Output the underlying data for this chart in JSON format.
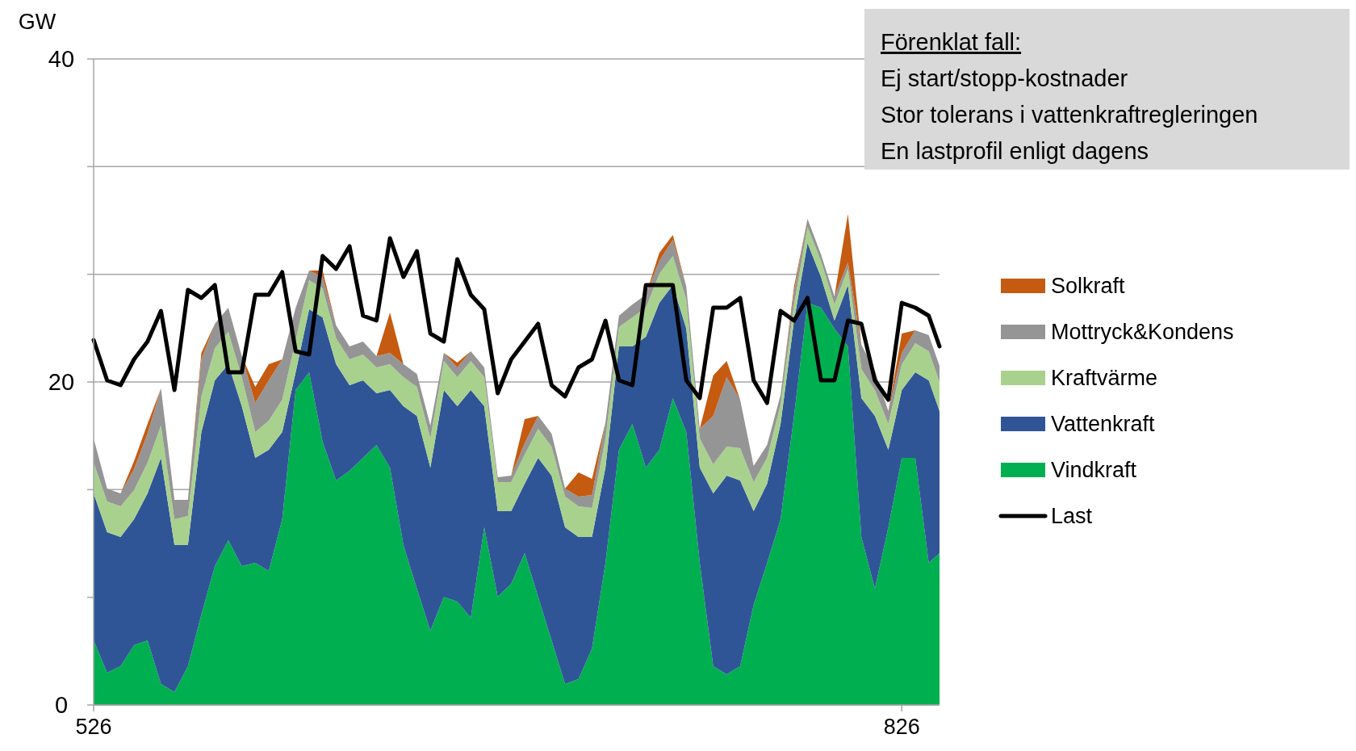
{
  "chart_data": {
    "type": "area",
    "stacked": true,
    "ylabel": "GW",
    "x": [
      526,
      531,
      536,
      541,
      546,
      551,
      556,
      561,
      566,
      571,
      576,
      581,
      586,
      591,
      596,
      601,
      606,
      611,
      616,
      621,
      626,
      631,
      636,
      641,
      646,
      651,
      656,
      661,
      666,
      671,
      676,
      681,
      686,
      691,
      696,
      701,
      706,
      711,
      716,
      721,
      726,
      731,
      736,
      741,
      746,
      751,
      756,
      761,
      766,
      771,
      776,
      781,
      786,
      791,
      796,
      801,
      806,
      811,
      816,
      821,
      826,
      831,
      836,
      840
    ],
    "series": [
      {
        "name": "Vindkraft",
        "color": "#00b050",
        "values": [
          4.0,
          2.0,
          2.4,
          3.7,
          4.0,
          1.3,
          0.8,
          2.4,
          5.6,
          8.6,
          10.2,
          8.6,
          8.8,
          8.3,
          11.5,
          19.5,
          20.6,
          16.3,
          13.9,
          14.5,
          15.3,
          16.1,
          14.7,
          9.9,
          7.2,
          4.6,
          6.7,
          6.4,
          5.4,
          11.0,
          6.7,
          7.5,
          9.4,
          6.7,
          4.0,
          1.3,
          1.6,
          3.5,
          8.8,
          15.8,
          17.4,
          14.7,
          15.8,
          19.0,
          16.9,
          8.8,
          2.4,
          1.9,
          2.4,
          6.2,
          8.8,
          11.5,
          17.9,
          24.9,
          24.6,
          23.3,
          22.2,
          10.4,
          7.2,
          11.0,
          15.3,
          15.3,
          8.8,
          9.4
        ]
      },
      {
        "name": "Vattenkraft",
        "color": "#2f5597",
        "values": [
          9.1,
          8.7,
          8.0,
          7.8,
          9.1,
          14.0,
          9.1,
          7.5,
          11.3,
          11.5,
          10.9,
          9.9,
          6.5,
          7.5,
          5.4,
          1.1,
          3.9,
          7.7,
          7.2,
          5.3,
          4.8,
          3.2,
          4.8,
          8.6,
          10.7,
          10.1,
          12.8,
          12.1,
          14.1,
          7.5,
          5.3,
          4.5,
          4.3,
          8.6,
          10.2,
          9.7,
          8.8,
          6.9,
          5.9,
          6.4,
          4.8,
          8.1,
          9.1,
          7.0,
          6.4,
          5.9,
          10.7,
          12.3,
          11.5,
          5.8,
          4.9,
          5.9,
          5.9,
          3.7,
          1.9,
          0.5,
          3.8,
          8.6,
          10.7,
          4.8,
          4.2,
          5.3,
          11.3,
          8.8
        ]
      },
      {
        "name": "Kraftvärme",
        "color": "#a9d18e",
        "values": [
          1.9,
          1.9,
          1.9,
          1.8,
          1.9,
          2.0,
          1.6,
          1.8,
          2.2,
          2.0,
          2.0,
          1.8,
          1.6,
          1.8,
          2.0,
          2.0,
          1.8,
          1.8,
          1.6,
          1.6,
          1.6,
          1.6,
          1.6,
          1.8,
          1.8,
          1.8,
          1.8,
          1.8,
          1.8,
          1.8,
          1.8,
          1.8,
          1.8,
          1.8,
          1.8,
          1.9,
          1.9,
          1.8,
          1.8,
          1.2,
          1.8,
          1.8,
          1.8,
          1.8,
          1.8,
          1.8,
          1.8,
          1.8,
          2.0,
          1.8,
          1.6,
          1.2,
          1.0,
          1.0,
          1.0,
          1.0,
          1.0,
          1.8,
          1.6,
          1.6,
          1.6,
          1.8,
          1.8,
          1.8
        ]
      },
      {
        "name": "Mottryck&Kondens",
        "color": "#959595",
        "values": [
          1.5,
          0.8,
          0.8,
          1.3,
          1.8,
          2.3,
          1.2,
          1.0,
          2.3,
          1.5,
          1.5,
          1.3,
          1.8,
          2.5,
          2.5,
          2.0,
          0.6,
          0.7,
          0.8,
          0.8,
          0.8,
          0.7,
          0.7,
          0.8,
          0.8,
          0.8,
          0.5,
          0.6,
          0.6,
          0.6,
          0.3,
          0.4,
          0.7,
          0.8,
          0.8,
          0.5,
          0.6,
          0.8,
          1.0,
          0.7,
          0.8,
          0.8,
          0.8,
          1.0,
          0.8,
          0.6,
          3.0,
          4.3,
          3.0,
          1.0,
          0.8,
          0.6,
          0.8,
          0.5,
          0.4,
          0.5,
          0.4,
          1.5,
          1.2,
          0.8,
          0.7,
          0.8,
          1.0,
          1.0
        ]
      },
      {
        "name": "Solkraft",
        "color": "#c55a11",
        "values": [
          0,
          0,
          0,
          0.5,
          0.6,
          0,
          0,
          0,
          0.4,
          0,
          0,
          0,
          1.0,
          1.0,
          0,
          0,
          0,
          0.4,
          0,
          0,
          0,
          0,
          2.5,
          0,
          0,
          0,
          0,
          0.3,
          0,
          0,
          0,
          0,
          1.5,
          0,
          0,
          0,
          1.5,
          1.0,
          0,
          0,
          0,
          0,
          0.5,
          0.3,
          0,
          0,
          2.5,
          1.0,
          0,
          0,
          0,
          0,
          0.3,
          0,
          0,
          0,
          3.0,
          0,
          0,
          0,
          1.2,
          0,
          0,
          0
        ]
      },
      {
        "name": "Last",
        "type": "line",
        "color": "#000000",
        "values": [
          22.6,
          20.1,
          19.8,
          21.4,
          22.5,
          24.4,
          19.5,
          25.7,
          25.2,
          26.0,
          20.6,
          20.6,
          25.4,
          25.4,
          26.8,
          21.9,
          21.7,
          27.8,
          27.0,
          28.4,
          24.1,
          23.8,
          28.9,
          26.5,
          28.1,
          23.0,
          22.5,
          27.6,
          25.4,
          24.5,
          19.3,
          21.4,
          22.5,
          23.6,
          19.8,
          19.1,
          20.9,
          21.4,
          23.8,
          20.1,
          19.8,
          26.0,
          26.0,
          26.0,
          20.1,
          19.0,
          24.6,
          24.6,
          25.2,
          20.1,
          18.7,
          24.4,
          23.8,
          25.2,
          20.1,
          20.1,
          23.8,
          23.6,
          20.1,
          18.9,
          24.9,
          24.6,
          24.1,
          22.2
        ]
      }
    ],
    "xlim": [
      526,
      840
    ],
    "xticks": [
      526,
      826
    ],
    "ylim": [
      0,
      40
    ],
    "yticks": [
      0,
      {
        "value": 6.667,
        "label": null
      },
      {
        "value": 13.333,
        "label": null
      },
      20,
      {
        "value": 26.667,
        "label": null
      },
      {
        "value": 33.333,
        "label": null
      },
      40
    ],
    "grid": "y",
    "legend": "right",
    "annotations": [
      "Förenklat fall:",
      "Ej start/stopp-kostnader",
      "Stor tolerans i vattenkraftregleringen",
      "En lastprofil enligt dagens"
    ]
  }
}
